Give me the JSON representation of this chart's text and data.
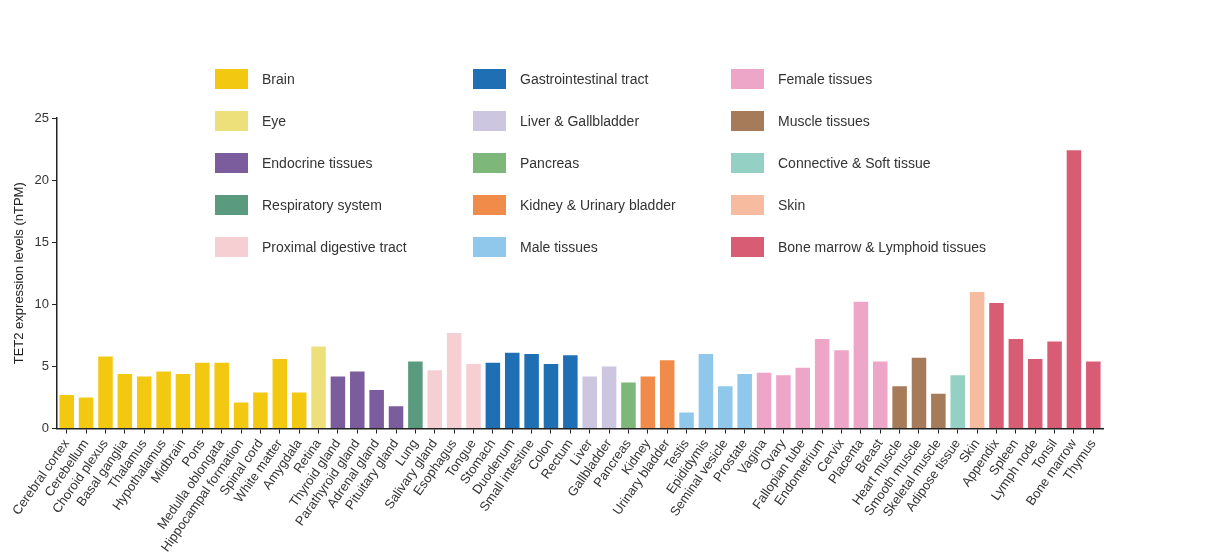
{
  "chart_data": {
    "type": "bar",
    "ylabel": "TET2 expression levels (nTPM)",
    "stacked": true,
    "legend": "top",
    "grid": false,
    "ylim": [
      0,
      25
    ],
    "yticks": [
      0,
      5,
      10,
      15,
      20,
      25
    ],
    "categories": [
      "Cerebral cortex",
      "Cerebellum",
      "Choroid plexus",
      "Basal ganglia",
      "Thalamus",
      "Hypothalamus",
      "Midbrain",
      "Pons",
      "Medulla oblongata",
      "Hippocampal formation",
      "Spinal cord",
      "White matter",
      "Amygdala",
      "Retina",
      "Thyroid gland",
      "Parathyroid gland",
      "Adrenal gland",
      "Pituitary gland",
      "Lung",
      "Salivary gland",
      "Esophagus",
      "Tongue",
      "Stomach",
      "Duodenum",
      "Small intestine",
      "Colon",
      "Rectum",
      "Liver",
      "Gallbladder",
      "Pancreas",
      "Kidney",
      "Urinary bladder",
      "Testis",
      "Epididymis",
      "Seminal vesicle",
      "Prostate",
      "Vagina",
      "Ovary",
      "Fallopian tube",
      "Endometrium",
      "Cervix",
      "Placenta",
      "Breast",
      "Heart muscle",
      "Smooth muscle",
      "Skeletal muscle",
      "Adipose tissue",
      "Skin",
      "Appendix",
      "Spleen",
      "Lymph node",
      "Tonsil",
      "Bone marrow",
      "Thymus"
    ],
    "series": [
      {
        "name": "Brain",
        "color": "#f2c811",
        "values": [
          2.7,
          2.5,
          5.8,
          4.4,
          4.2,
          4.6,
          4.4,
          5.3,
          5.3,
          2.1,
          2.9,
          5.6,
          2.9,
          null,
          null,
          null,
          null,
          null,
          null,
          null,
          null,
          null,
          null,
          null,
          null,
          null,
          null,
          null,
          null,
          null,
          null,
          null,
          null,
          null,
          null,
          null,
          null,
          null,
          null,
          null,
          null,
          null,
          null,
          null,
          null,
          null,
          null,
          null,
          null,
          null,
          null,
          null,
          null,
          null
        ]
      },
      {
        "name": "Eye",
        "color": "#ede07a",
        "values": [
          null,
          null,
          null,
          null,
          null,
          null,
          null,
          null,
          null,
          null,
          null,
          null,
          null,
          6.6,
          null,
          null,
          null,
          null,
          null,
          null,
          null,
          null,
          null,
          null,
          null,
          null,
          null,
          null,
          null,
          null,
          null,
          null,
          null,
          null,
          null,
          null,
          null,
          null,
          null,
          null,
          null,
          null,
          null,
          null,
          null,
          null,
          null,
          null,
          null,
          null,
          null,
          null,
          null,
          null
        ]
      },
      {
        "name": "Endocrine tissues",
        "color": "#7b5c9c",
        "values": [
          null,
          null,
          null,
          null,
          null,
          null,
          null,
          null,
          null,
          null,
          null,
          null,
          null,
          null,
          4.2,
          4.6,
          3.1,
          1.8,
          null,
          null,
          null,
          null,
          null,
          null,
          null,
          null,
          null,
          null,
          null,
          null,
          null,
          null,
          null,
          null,
          null,
          null,
          null,
          null,
          null,
          null,
          null,
          null,
          null,
          null,
          null,
          null,
          null,
          null,
          null,
          null,
          null,
          null,
          null,
          null
        ]
      },
      {
        "name": "Respiratory system",
        "color": "#5a9a7e",
        "values": [
          null,
          null,
          null,
          null,
          null,
          null,
          null,
          null,
          null,
          null,
          null,
          null,
          null,
          null,
          null,
          null,
          null,
          null,
          5.4,
          null,
          null,
          null,
          null,
          null,
          null,
          null,
          null,
          null,
          null,
          null,
          null,
          null,
          null,
          null,
          null,
          null,
          null,
          null,
          null,
          null,
          null,
          null,
          null,
          null,
          null,
          null,
          null,
          null,
          null,
          null,
          null,
          null,
          null,
          null
        ]
      },
      {
        "name": "Proximal digestive tract",
        "color": "#f6cfd2",
        "values": [
          null,
          null,
          null,
          null,
          null,
          null,
          null,
          null,
          null,
          null,
          null,
          null,
          null,
          null,
          null,
          null,
          null,
          null,
          null,
          4.7,
          7.7,
          5.2,
          null,
          null,
          null,
          null,
          null,
          null,
          null,
          null,
          null,
          null,
          null,
          null,
          null,
          null,
          null,
          null,
          null,
          null,
          null,
          null,
          null,
          null,
          null,
          null,
          null,
          null,
          null,
          null,
          null,
          null,
          null,
          null
        ]
      },
      {
        "name": "Gastrointestinal tract",
        "color": "#1f6fb4",
        "values": [
          null,
          null,
          null,
          null,
          null,
          null,
          null,
          null,
          null,
          null,
          null,
          null,
          null,
          null,
          null,
          null,
          null,
          null,
          null,
          null,
          null,
          null,
          5.3,
          6.1,
          6.0,
          5.2,
          5.9,
          null,
          null,
          null,
          null,
          null,
          null,
          null,
          null,
          null,
          null,
          null,
          null,
          null,
          null,
          null,
          null,
          null,
          null,
          null,
          null,
          null,
          null,
          null,
          null,
          null,
          null,
          null
        ]
      },
      {
        "name": "Liver & Gallbladder",
        "color": "#cdc6e0",
        "values": [
          null,
          null,
          null,
          null,
          null,
          null,
          null,
          null,
          null,
          null,
          null,
          null,
          null,
          null,
          null,
          null,
          null,
          null,
          null,
          null,
          null,
          null,
          null,
          null,
          null,
          null,
          null,
          4.2,
          5.0,
          null,
          null,
          null,
          null,
          null,
          null,
          null,
          null,
          null,
          null,
          null,
          null,
          null,
          null,
          null,
          null,
          null,
          null,
          null,
          null,
          null,
          null,
          null,
          null,
          null
        ]
      },
      {
        "name": "Pancreas",
        "color": "#7db87a",
        "values": [
          null,
          null,
          null,
          null,
          null,
          null,
          null,
          null,
          null,
          null,
          null,
          null,
          null,
          null,
          null,
          null,
          null,
          null,
          null,
          null,
          null,
          null,
          null,
          null,
          null,
          null,
          null,
          null,
          null,
          3.7,
          null,
          null,
          null,
          null,
          null,
          null,
          null,
          null,
          null,
          null,
          null,
          null,
          null,
          null,
          null,
          null,
          null,
          null,
          null,
          null,
          null,
          null,
          null,
          null
        ]
      },
      {
        "name": "Kidney & Urinary bladder",
        "color": "#f08b4a",
        "values": [
          null,
          null,
          null,
          null,
          null,
          null,
          null,
          null,
          null,
          null,
          null,
          null,
          null,
          null,
          null,
          null,
          null,
          null,
          null,
          null,
          null,
          null,
          null,
          null,
          null,
          null,
          null,
          null,
          null,
          null,
          4.2,
          5.5,
          null,
          null,
          null,
          null,
          null,
          null,
          null,
          null,
          null,
          null,
          null,
          null,
          null,
          null,
          null,
          null,
          null,
          null,
          null,
          null,
          null,
          null
        ]
      },
      {
        "name": "Male tissues",
        "color": "#8fc8ea",
        "values": [
          null,
          null,
          null,
          null,
          null,
          null,
          null,
          null,
          null,
          null,
          null,
          null,
          null,
          null,
          null,
          null,
          null,
          null,
          null,
          null,
          null,
          null,
          null,
          null,
          null,
          null,
          null,
          null,
          null,
          null,
          null,
          null,
          1.3,
          6.0,
          3.4,
          4.4,
          null,
          null,
          null,
          null,
          null,
          null,
          null,
          null,
          null,
          null,
          null,
          null,
          null,
          null,
          null,
          null,
          null,
          null
        ]
      },
      {
        "name": "Female tissues",
        "color": "#eda5c8",
        "values": [
          null,
          null,
          null,
          null,
          null,
          null,
          null,
          null,
          null,
          null,
          null,
          null,
          null,
          null,
          null,
          null,
          null,
          null,
          null,
          null,
          null,
          null,
          null,
          null,
          null,
          null,
          null,
          null,
          null,
          null,
          null,
          null,
          null,
          null,
          null,
          null,
          4.5,
          4.3,
          4.9,
          7.2,
          6.3,
          10.2,
          5.4,
          null,
          null,
          null,
          null,
          null,
          null,
          null,
          null,
          null,
          null,
          null
        ]
      },
      {
        "name": "Muscle tissues",
        "color": "#a57b5a",
        "values": [
          null,
          null,
          null,
          null,
          null,
          null,
          null,
          null,
          null,
          null,
          null,
          null,
          null,
          null,
          null,
          null,
          null,
          null,
          null,
          null,
          null,
          null,
          null,
          null,
          null,
          null,
          null,
          null,
          null,
          null,
          null,
          null,
          null,
          null,
          null,
          null,
          null,
          null,
          null,
          null,
          null,
          null,
          null,
          3.4,
          5.7,
          2.8,
          null,
          null,
          null,
          null,
          null,
          null,
          null,
          null
        ]
      },
      {
        "name": "Connective & Soft tissue",
        "color": "#94d1c4",
        "values": [
          null,
          null,
          null,
          null,
          null,
          null,
          null,
          null,
          null,
          null,
          null,
          null,
          null,
          null,
          null,
          null,
          null,
          null,
          null,
          null,
          null,
          null,
          null,
          null,
          null,
          null,
          null,
          null,
          null,
          null,
          null,
          null,
          null,
          null,
          null,
          null,
          null,
          null,
          null,
          null,
          null,
          null,
          null,
          null,
          null,
          null,
          4.3,
          null,
          null,
          null,
          null,
          null,
          null,
          null
        ]
      },
      {
        "name": "Skin",
        "color": "#f7bca0",
        "values": [
          null,
          null,
          null,
          null,
          null,
          null,
          null,
          null,
          null,
          null,
          null,
          null,
          null,
          null,
          null,
          null,
          null,
          null,
          null,
          null,
          null,
          null,
          null,
          null,
          null,
          null,
          null,
          null,
          null,
          null,
          null,
          null,
          null,
          null,
          null,
          null,
          null,
          null,
          null,
          null,
          null,
          null,
          null,
          null,
          null,
          null,
          null,
          11.0,
          null,
          null,
          null,
          null,
          null,
          null
        ]
      },
      {
        "name": "Bone marrow & Lymphoid tissues",
        "color": "#d95c75",
        "values": [
          null,
          null,
          null,
          null,
          null,
          null,
          null,
          null,
          null,
          null,
          null,
          null,
          null,
          null,
          null,
          null,
          null,
          null,
          null,
          null,
          null,
          null,
          null,
          null,
          null,
          null,
          null,
          null,
          null,
          null,
          null,
          null,
          null,
          null,
          null,
          null,
          null,
          null,
          null,
          null,
          null,
          null,
          null,
          null,
          null,
          null,
          null,
          null,
          10.1,
          7.2,
          5.6,
          7.0,
          22.4,
          5.4
        ]
      }
    ]
  }
}
